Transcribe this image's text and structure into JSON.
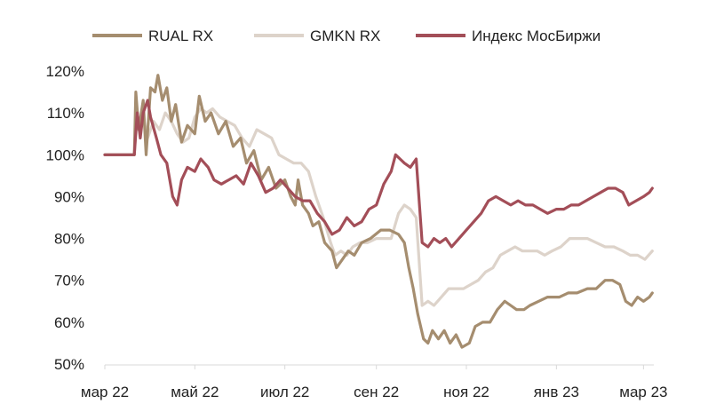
{
  "chart_data": {
    "type": "line",
    "title": "",
    "xlabel": "",
    "ylabel": "",
    "ylim": [
      50,
      120
    ],
    "y_ticks": [
      50,
      60,
      70,
      80,
      90,
      100,
      110,
      120
    ],
    "y_tick_labels": [
      "50%",
      "60%",
      "70%",
      "80%",
      "90%",
      "100%",
      "110%",
      "120%"
    ],
    "x_ticks": [
      "2022-03-01",
      "2022-05-01",
      "2022-07-01",
      "2022-09-01",
      "2022-11-01",
      "2023-01-01",
      "2023-03-01"
    ],
    "x_tick_labels": [
      "мар 22",
      "май 22",
      "июл 22",
      "сен 22",
      "ноя 22",
      "янв 23",
      "мар 23"
    ],
    "xlim": [
      "2022-03-01",
      "2023-03-08"
    ],
    "grid": false,
    "legend_position": "top",
    "series": [
      {
        "name": "RUAL RX",
        "color": "#a58d6f",
        "points": [
          [
            "2022-03-01",
            100
          ],
          [
            "2022-03-21",
            100
          ],
          [
            "2022-03-22",
            115
          ],
          [
            "2022-03-24",
            106
          ],
          [
            "2022-03-27",
            113
          ],
          [
            "2022-03-29",
            100
          ],
          [
            "2022-04-01",
            116
          ],
          [
            "2022-04-04",
            115
          ],
          [
            "2022-04-06",
            119
          ],
          [
            "2022-04-09",
            113
          ],
          [
            "2022-04-12",
            116
          ],
          [
            "2022-04-15",
            108
          ],
          [
            "2022-04-18",
            112
          ],
          [
            "2022-04-22",
            103
          ],
          [
            "2022-04-26",
            107
          ],
          [
            "2022-05-01",
            105
          ],
          [
            "2022-05-04",
            114
          ],
          [
            "2022-05-08",
            108
          ],
          [
            "2022-05-12",
            110
          ],
          [
            "2022-05-17",
            105
          ],
          [
            "2022-05-22",
            108
          ],
          [
            "2022-05-27",
            102
          ],
          [
            "2022-06-01",
            104
          ],
          [
            "2022-06-05",
            98
          ],
          [
            "2022-06-10",
            101
          ],
          [
            "2022-06-15",
            94
          ],
          [
            "2022-06-20",
            97
          ],
          [
            "2022-06-25",
            92
          ],
          [
            "2022-07-01",
            94
          ],
          [
            "2022-07-05",
            90
          ],
          [
            "2022-07-08",
            88
          ],
          [
            "2022-07-10",
            94
          ],
          [
            "2022-07-13",
            88
          ],
          [
            "2022-07-17",
            86
          ],
          [
            "2022-07-20",
            83
          ],
          [
            "2022-07-24",
            84
          ],
          [
            "2022-07-28",
            79
          ],
          [
            "2022-08-02",
            77
          ],
          [
            "2022-08-05",
            73
          ],
          [
            "2022-08-09",
            75
          ],
          [
            "2022-08-13",
            77
          ],
          [
            "2022-08-17",
            76
          ],
          [
            "2022-08-22",
            79
          ],
          [
            "2022-08-28",
            80
          ],
          [
            "2022-09-04",
            82
          ],
          [
            "2022-09-10",
            82
          ],
          [
            "2022-09-16",
            81
          ],
          [
            "2022-09-20",
            79
          ],
          [
            "2022-09-23",
            73
          ],
          [
            "2022-09-26",
            68
          ],
          [
            "2022-09-29",
            62
          ],
          [
            "2022-10-03",
            56
          ],
          [
            "2022-10-06",
            55
          ],
          [
            "2022-10-09",
            58
          ],
          [
            "2022-10-13",
            56
          ],
          [
            "2022-10-17",
            58
          ],
          [
            "2022-10-21",
            55
          ],
          [
            "2022-10-25",
            57
          ],
          [
            "2022-10-29",
            54
          ],
          [
            "2022-11-03",
            55
          ],
          [
            "2022-11-07",
            59
          ],
          [
            "2022-11-12",
            60
          ],
          [
            "2022-11-17",
            60
          ],
          [
            "2022-11-22",
            63
          ],
          [
            "2022-11-27",
            65
          ],
          [
            "2022-12-01",
            64
          ],
          [
            "2022-12-05",
            63
          ],
          [
            "2022-12-10",
            63
          ],
          [
            "2022-12-14",
            64
          ],
          [
            "2022-12-20",
            65
          ],
          [
            "2022-12-26",
            66
          ],
          [
            "2023-01-03",
            66
          ],
          [
            "2023-01-09",
            67
          ],
          [
            "2023-01-15",
            67
          ],
          [
            "2023-01-22",
            68
          ],
          [
            "2023-01-28",
            68
          ],
          [
            "2023-02-03",
            70
          ],
          [
            "2023-02-08",
            70
          ],
          [
            "2023-02-13",
            69
          ],
          [
            "2023-02-17",
            65
          ],
          [
            "2023-02-21",
            64
          ],
          [
            "2023-02-25",
            66
          ],
          [
            "2023-03-01",
            65
          ],
          [
            "2023-03-05",
            66
          ],
          [
            "2023-03-07",
            67
          ]
        ]
      },
      {
        "name": "GMKN RX",
        "color": "#ddd3ca",
        "points": [
          [
            "2022-03-01",
            100
          ],
          [
            "2022-03-21",
            100
          ],
          [
            "2022-03-22",
            106
          ],
          [
            "2022-03-24",
            107
          ],
          [
            "2022-03-27",
            109
          ],
          [
            "2022-03-30",
            104
          ],
          [
            "2022-04-03",
            108
          ],
          [
            "2022-04-07",
            106
          ],
          [
            "2022-04-11",
            110
          ],
          [
            "2022-04-15",
            108
          ],
          [
            "2022-04-19",
            105
          ],
          [
            "2022-04-23",
            103
          ],
          [
            "2022-04-27",
            104
          ],
          [
            "2022-05-01",
            109
          ],
          [
            "2022-05-05",
            111
          ],
          [
            "2022-05-09",
            110
          ],
          [
            "2022-05-13",
            111
          ],
          [
            "2022-05-18",
            109
          ],
          [
            "2022-05-23",
            108
          ],
          [
            "2022-05-28",
            107
          ],
          [
            "2022-06-02",
            104
          ],
          [
            "2022-06-07",
            102
          ],
          [
            "2022-06-12",
            106
          ],
          [
            "2022-06-17",
            105
          ],
          [
            "2022-06-22",
            104
          ],
          [
            "2022-06-27",
            100
          ],
          [
            "2022-07-02",
            99
          ],
          [
            "2022-07-07",
            98
          ],
          [
            "2022-07-12",
            98
          ],
          [
            "2022-07-17",
            96
          ],
          [
            "2022-07-22",
            90
          ],
          [
            "2022-07-27",
            85
          ],
          [
            "2022-08-01",
            79
          ],
          [
            "2022-08-04",
            76
          ],
          [
            "2022-08-08",
            77
          ],
          [
            "2022-08-12",
            76
          ],
          [
            "2022-08-16",
            78
          ],
          [
            "2022-08-21",
            79
          ],
          [
            "2022-08-26",
            79
          ],
          [
            "2022-09-01",
            80
          ],
          [
            "2022-09-06",
            80
          ],
          [
            "2022-09-11",
            80
          ],
          [
            "2022-09-16",
            86
          ],
          [
            "2022-09-20",
            88
          ],
          [
            "2022-09-24",
            87
          ],
          [
            "2022-09-28",
            85
          ],
          [
            "2022-10-02",
            64
          ],
          [
            "2022-10-06",
            65
          ],
          [
            "2022-10-10",
            64
          ],
          [
            "2022-10-15",
            66
          ],
          [
            "2022-10-20",
            68
          ],
          [
            "2022-10-25",
            68
          ],
          [
            "2022-10-30",
            68
          ],
          [
            "2022-11-04",
            69
          ],
          [
            "2022-11-09",
            70
          ],
          [
            "2022-11-14",
            72
          ],
          [
            "2022-11-19",
            73
          ],
          [
            "2022-11-24",
            76
          ],
          [
            "2022-11-29",
            77
          ],
          [
            "2022-12-04",
            78
          ],
          [
            "2022-12-09",
            77
          ],
          [
            "2022-12-14",
            77
          ],
          [
            "2022-12-19",
            77
          ],
          [
            "2022-12-24",
            76
          ],
          [
            "2022-12-29",
            77
          ],
          [
            "2023-01-04",
            78
          ],
          [
            "2023-01-10",
            80
          ],
          [
            "2023-01-16",
            80
          ],
          [
            "2023-01-22",
            80
          ],
          [
            "2023-01-28",
            79
          ],
          [
            "2023-02-03",
            78
          ],
          [
            "2023-02-09",
            78
          ],
          [
            "2023-02-15",
            77
          ],
          [
            "2023-02-20",
            76
          ],
          [
            "2023-02-25",
            76
          ],
          [
            "2023-03-02",
            75
          ],
          [
            "2023-03-07",
            77
          ]
        ]
      },
      {
        "name": "Индекс МосБиржи",
        "color": "#a34e58",
        "points": [
          [
            "2022-03-01",
            100
          ],
          [
            "2022-03-21",
            100
          ],
          [
            "2022-03-23",
            110
          ],
          [
            "2022-03-25",
            104
          ],
          [
            "2022-03-27",
            110
          ],
          [
            "2022-03-30",
            113
          ],
          [
            "2022-04-01",
            109
          ],
          [
            "2022-04-05",
            104
          ],
          [
            "2022-04-08",
            100
          ],
          [
            "2022-04-12",
            98
          ],
          [
            "2022-04-16",
            90
          ],
          [
            "2022-04-19",
            88
          ],
          [
            "2022-04-22",
            94
          ],
          [
            "2022-04-26",
            97
          ],
          [
            "2022-05-01",
            96
          ],
          [
            "2022-05-05",
            99
          ],
          [
            "2022-05-10",
            97
          ],
          [
            "2022-05-14",
            94
          ],
          [
            "2022-05-19",
            93
          ],
          [
            "2022-05-24",
            94
          ],
          [
            "2022-05-29",
            95
          ],
          [
            "2022-06-03",
            93
          ],
          [
            "2022-06-08",
            98
          ],
          [
            "2022-06-13",
            95
          ],
          [
            "2022-06-18",
            91
          ],
          [
            "2022-06-23",
            92
          ],
          [
            "2022-06-28",
            94
          ],
          [
            "2022-07-03",
            92
          ],
          [
            "2022-07-08",
            90
          ],
          [
            "2022-07-13",
            89
          ],
          [
            "2022-07-18",
            89
          ],
          [
            "2022-07-23",
            86
          ],
          [
            "2022-07-28",
            84
          ],
          [
            "2022-08-02",
            81
          ],
          [
            "2022-08-07",
            82
          ],
          [
            "2022-08-12",
            85
          ],
          [
            "2022-08-17",
            83
          ],
          [
            "2022-08-22",
            84
          ],
          [
            "2022-08-27",
            87
          ],
          [
            "2022-09-01",
            88
          ],
          [
            "2022-09-06",
            93
          ],
          [
            "2022-09-11",
            96
          ],
          [
            "2022-09-14",
            100
          ],
          [
            "2022-09-17",
            99
          ],
          [
            "2022-09-20",
            98
          ],
          [
            "2022-09-24",
            97
          ],
          [
            "2022-09-28",
            99
          ],
          [
            "2022-10-02",
            79
          ],
          [
            "2022-10-06",
            78
          ],
          [
            "2022-10-10",
            80
          ],
          [
            "2022-10-14",
            79
          ],
          [
            "2022-10-18",
            80
          ],
          [
            "2022-10-22",
            78
          ],
          [
            "2022-10-27",
            80
          ],
          [
            "2022-11-01",
            82
          ],
          [
            "2022-11-06",
            84
          ],
          [
            "2022-11-11",
            86
          ],
          [
            "2022-11-16",
            89
          ],
          [
            "2022-11-21",
            90
          ],
          [
            "2022-11-26",
            89
          ],
          [
            "2022-12-01",
            88
          ],
          [
            "2022-12-06",
            89
          ],
          [
            "2022-12-11",
            88
          ],
          [
            "2022-12-16",
            88
          ],
          [
            "2022-12-21",
            87
          ],
          [
            "2022-12-26",
            86
          ],
          [
            "2023-01-01",
            87
          ],
          [
            "2023-01-06",
            87
          ],
          [
            "2023-01-11",
            88
          ],
          [
            "2023-01-16",
            88
          ],
          [
            "2023-01-21",
            89
          ],
          [
            "2023-01-26",
            90
          ],
          [
            "2023-01-31",
            91
          ],
          [
            "2023-02-05",
            92
          ],
          [
            "2023-02-10",
            92
          ],
          [
            "2023-02-15",
            91
          ],
          [
            "2023-02-19",
            88
          ],
          [
            "2023-02-24",
            89
          ],
          [
            "2023-03-01",
            90
          ],
          [
            "2023-03-05",
            91
          ],
          [
            "2023-03-07",
            92
          ]
        ]
      }
    ]
  }
}
